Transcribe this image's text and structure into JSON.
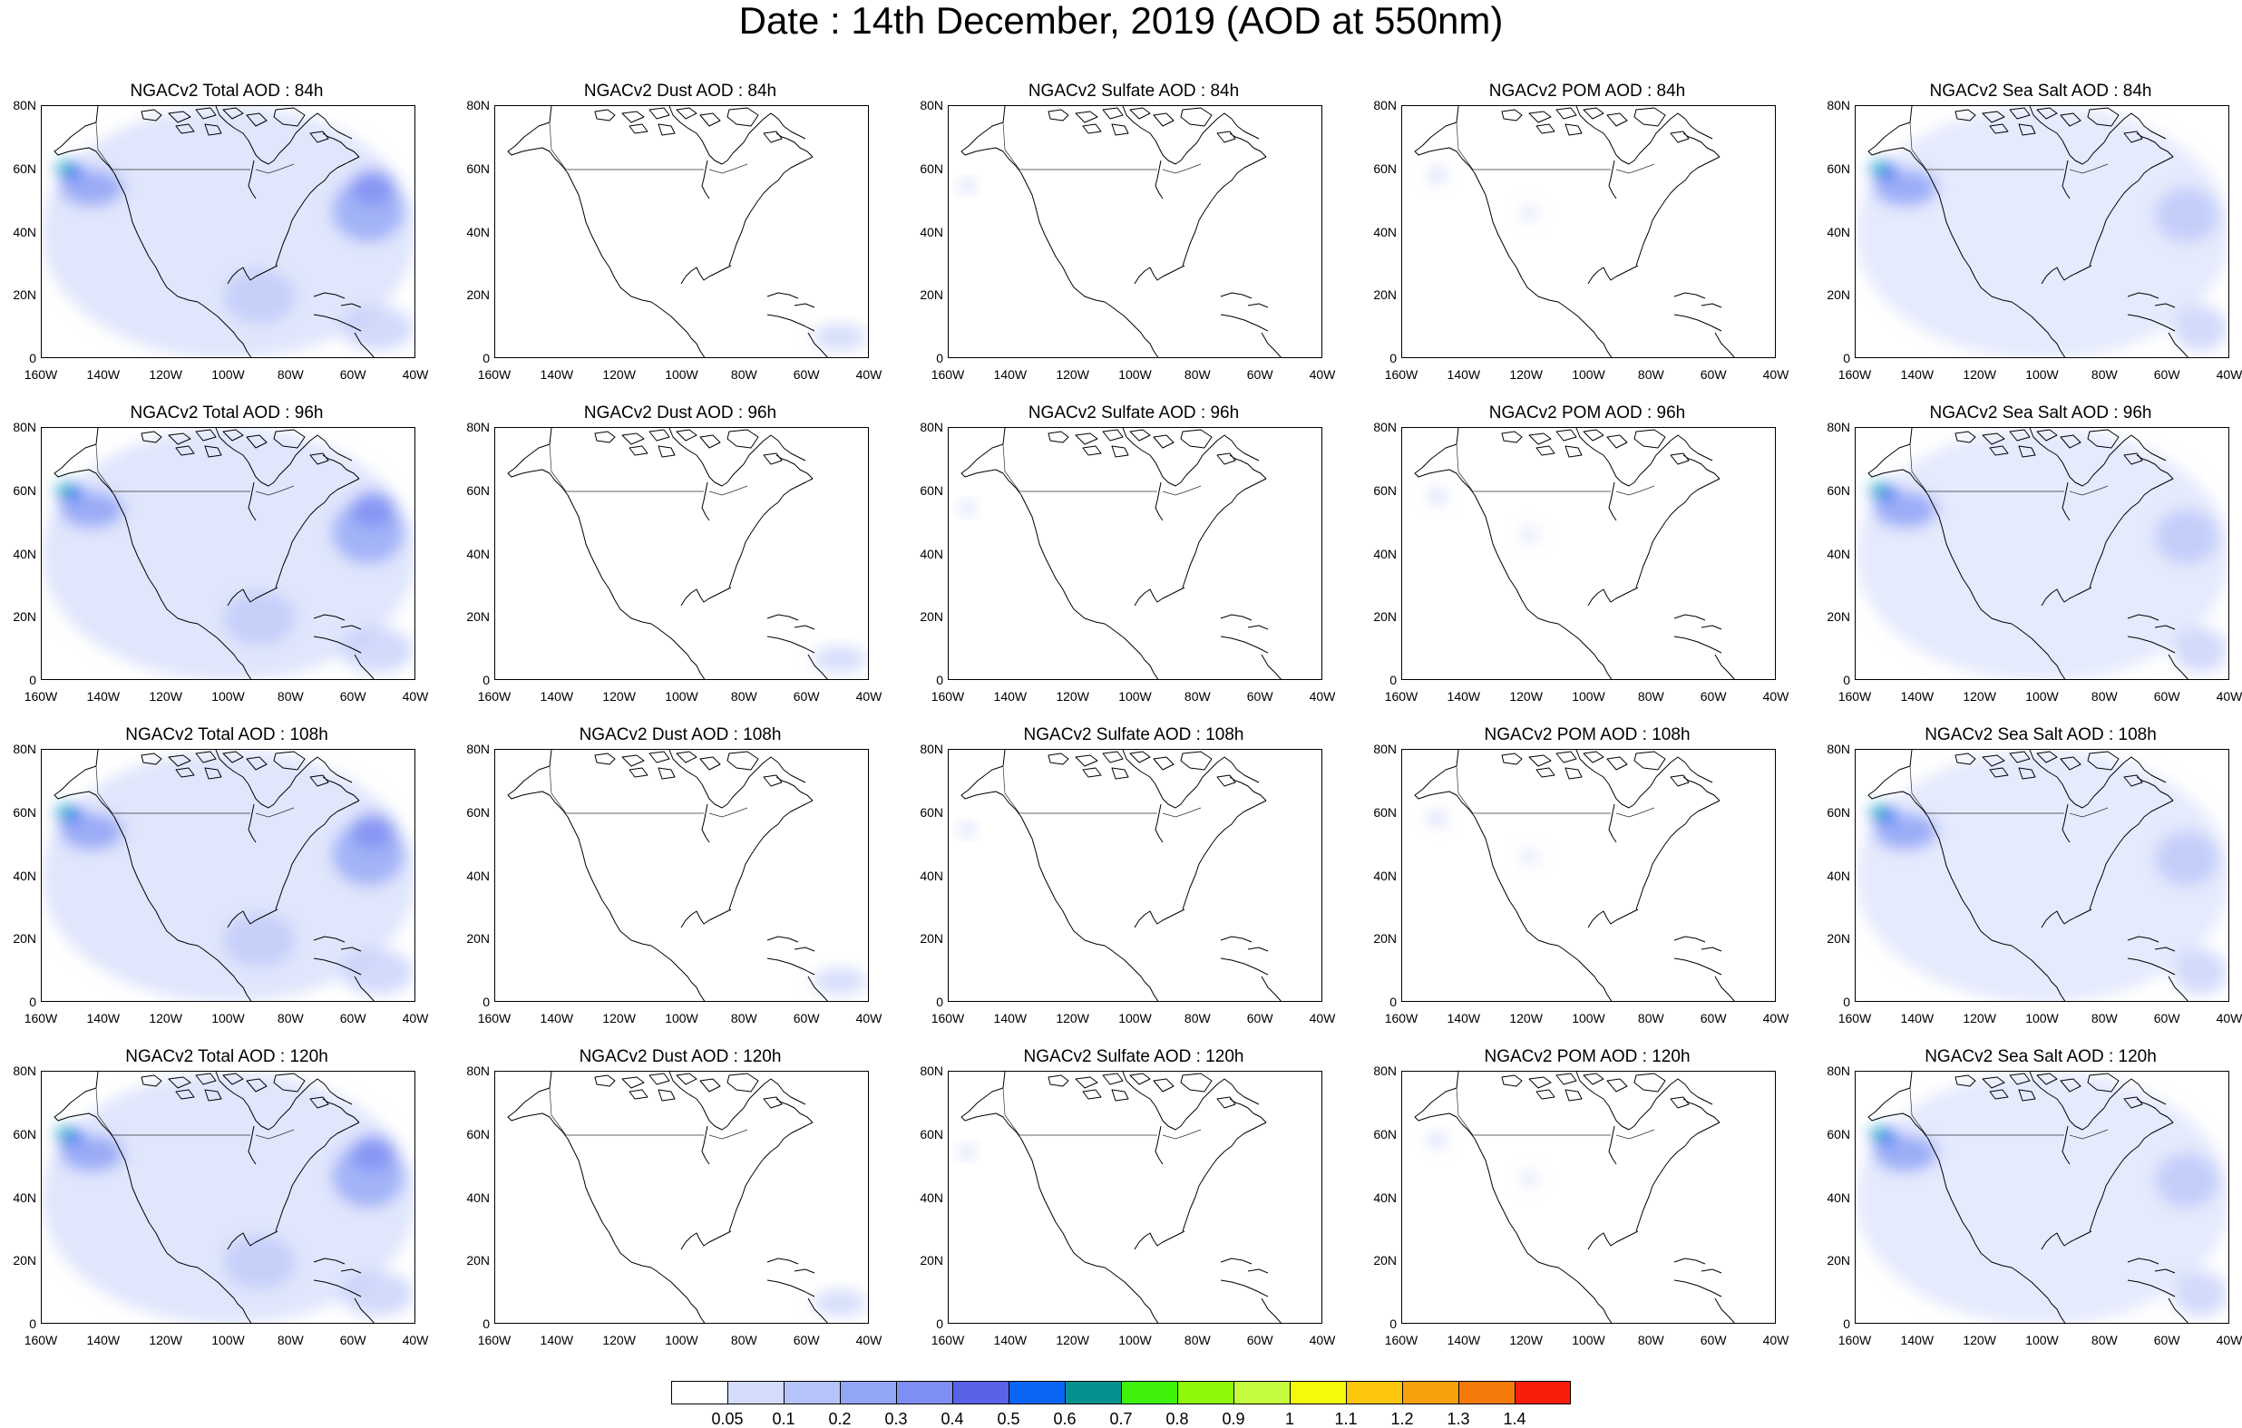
{
  "title": "Date : 14th December, 2019 (AOD at 550nm)",
  "map": {
    "lat_labels": [
      "80N",
      "60N",
      "40N",
      "20N",
      "0"
    ],
    "lon_labels": [
      "160W",
      "140W",
      "120W",
      "100W",
      "80W",
      "60W",
      "40W"
    ],
    "projection": "cylindrical equidistant",
    "extent": {
      "lon": [
        -160,
        -40
      ],
      "lat": [
        0,
        80
      ]
    }
  },
  "panels": [
    {
      "title": "NGACv2 Total AOD : 84h",
      "species": "total",
      "forecast_hour": 84
    },
    {
      "title": "NGACv2 Dust AOD : 84h",
      "species": "dust",
      "forecast_hour": 84
    },
    {
      "title": "NGACv2 Sulfate AOD : 84h",
      "species": "sulfate",
      "forecast_hour": 84
    },
    {
      "title": "NGACv2 POM AOD : 84h",
      "species": "pom",
      "forecast_hour": 84
    },
    {
      "title": "NGACv2 Sea Salt AOD : 84h",
      "species": "seasalt",
      "forecast_hour": 84
    },
    {
      "title": "NGACv2 Total AOD : 96h",
      "species": "total",
      "forecast_hour": 96
    },
    {
      "title": "NGACv2 Dust AOD : 96h",
      "species": "dust",
      "forecast_hour": 96
    },
    {
      "title": "NGACv2 Sulfate AOD : 96h",
      "species": "sulfate",
      "forecast_hour": 96
    },
    {
      "title": "NGACv2 POM AOD : 96h",
      "species": "pom",
      "forecast_hour": 96
    },
    {
      "title": "NGACv2 Sea Salt AOD : 96h",
      "species": "seasalt",
      "forecast_hour": 96
    },
    {
      "title": "NGACv2 Total AOD : 108h",
      "species": "total",
      "forecast_hour": 108
    },
    {
      "title": "NGACv2 Dust AOD : 108h",
      "species": "dust",
      "forecast_hour": 108
    },
    {
      "title": "NGACv2 Sulfate AOD : 108h",
      "species": "sulfate",
      "forecast_hour": 108
    },
    {
      "title": "NGACv2 POM AOD : 108h",
      "species": "pom",
      "forecast_hour": 108
    },
    {
      "title": "NGACv2 Sea Salt AOD : 108h",
      "species": "seasalt",
      "forecast_hour": 108
    },
    {
      "title": "NGACv2 Total AOD : 120h",
      "species": "total",
      "forecast_hour": 120
    },
    {
      "title": "NGACv2 Dust AOD : 120h",
      "species": "dust",
      "forecast_hour": 120
    },
    {
      "title": "NGACv2 Sulfate AOD : 120h",
      "species": "sulfate",
      "forecast_hour": 120
    },
    {
      "title": "NGACv2 POM AOD : 120h",
      "species": "pom",
      "forecast_hour": 120
    },
    {
      "title": "NGACv2 Sea Salt  AOD : 120h",
      "species": "seasalt",
      "forecast_hour": 120
    }
  ],
  "colorbar": {
    "labels": [
      "0.05",
      "0.1",
      "0.2",
      "0.3",
      "0.4",
      "0.5",
      "0.6",
      "0.7",
      "0.8",
      "0.9",
      "1",
      "1.1",
      "1.2",
      "1.3",
      "1.4"
    ],
    "colors": [
      "#ffffff",
      "#d3dcfb",
      "#b6c3f8",
      "#93a6f6",
      "#7f8ef2",
      "#5a62e8",
      "#0a64f5",
      "#04918f",
      "#3ef20a",
      "#8ef70a",
      "#c4fb3c",
      "#f5f90c",
      "#fcc60c",
      "#f8a10a",
      "#f67a0a",
      "#f81e0a"
    ]
  }
}
